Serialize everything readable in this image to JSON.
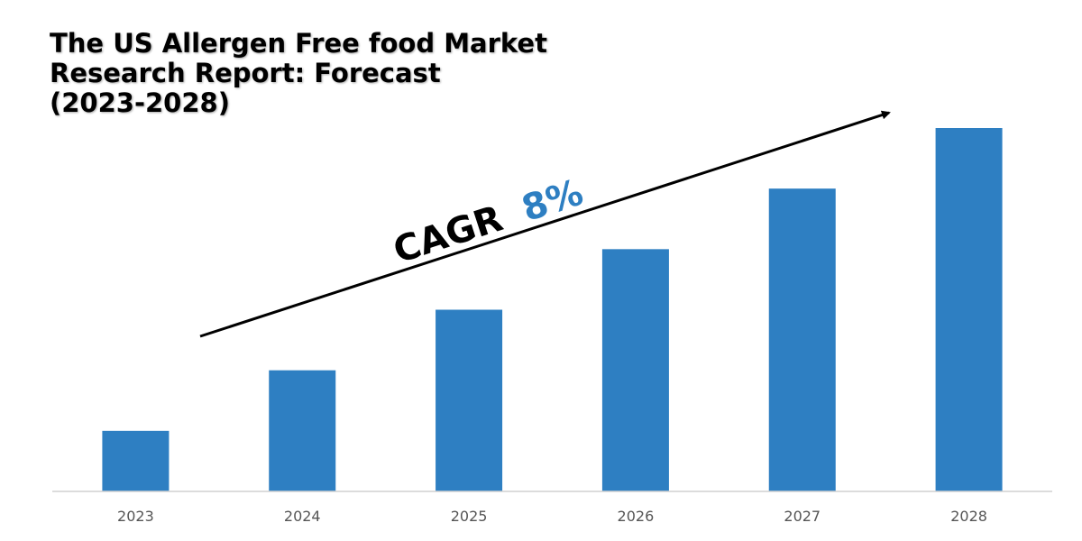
{
  "title": {
    "line1": "The US Allergen Free food Market",
    "line2": "Research Report: Forecast",
    "line3": "(2023-2028)"
  },
  "annotation": {
    "label": "CAGR",
    "value": "8%",
    "label_color": "#000000",
    "value_color": "#2e7fc2"
  },
  "colors": {
    "bar": "#2e7fc2",
    "arrow": "#000000",
    "axis": "#d0d0d0"
  },
  "chart_data": {
    "type": "bar",
    "categories": [
      "2023",
      "2024",
      "2025",
      "2026",
      "2027",
      "2028"
    ],
    "values": [
      1.0,
      2.0,
      3.0,
      4.0,
      5.0,
      6.0
    ],
    "title": "The US Allergen Free food Market Research Report: Forecast (2023-2028)",
    "xlabel": "",
    "ylabel": "",
    "ylim": [
      0,
      6.3
    ],
    "grid": false,
    "legend": "none"
  }
}
